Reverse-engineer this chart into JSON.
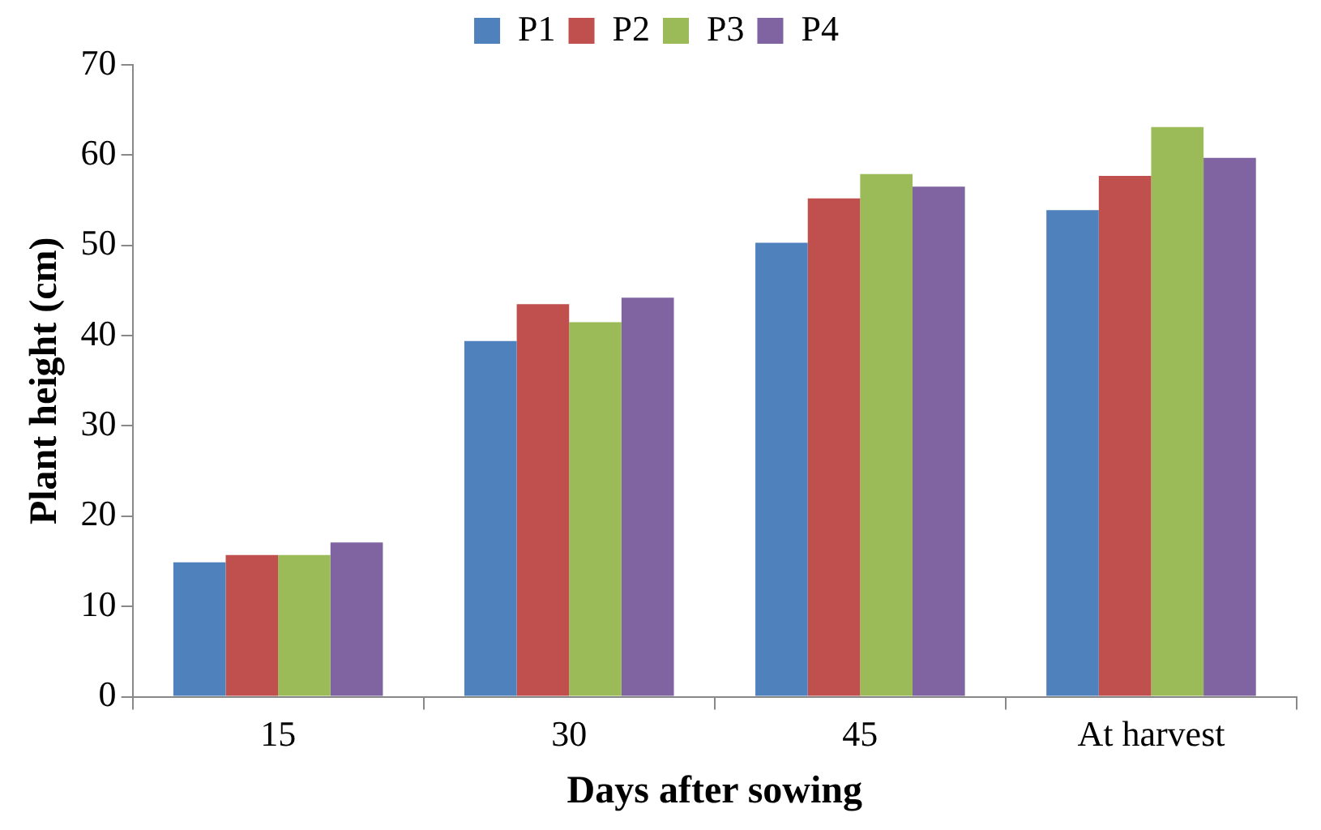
{
  "chart_data": {
    "type": "bar",
    "xlabel": "Days after sowing",
    "ylabel": "Plant height (cm)",
    "categories": [
      "15",
      "30",
      "45",
      "At harvest"
    ],
    "series": [
      {
        "name": "P1",
        "color": "#4f81bd",
        "values": [
          14.9,
          39.4,
          50.3,
          53.9
        ]
      },
      {
        "name": "P2",
        "color": "#c0504d",
        "values": [
          15.7,
          43.5,
          55.2,
          57.7
        ]
      },
      {
        "name": "P3",
        "color": "#9bbb59",
        "values": [
          15.7,
          41.5,
          57.9,
          63.1
        ]
      },
      {
        "name": "P4",
        "color": "#8064a2",
        "values": [
          17.1,
          44.2,
          56.5,
          59.7
        ]
      }
    ],
    "ylim": [
      0,
      70
    ],
    "yticks": [
      0,
      10,
      20,
      30,
      40,
      50,
      60,
      70
    ],
    "grid": false,
    "legend": "top"
  }
}
